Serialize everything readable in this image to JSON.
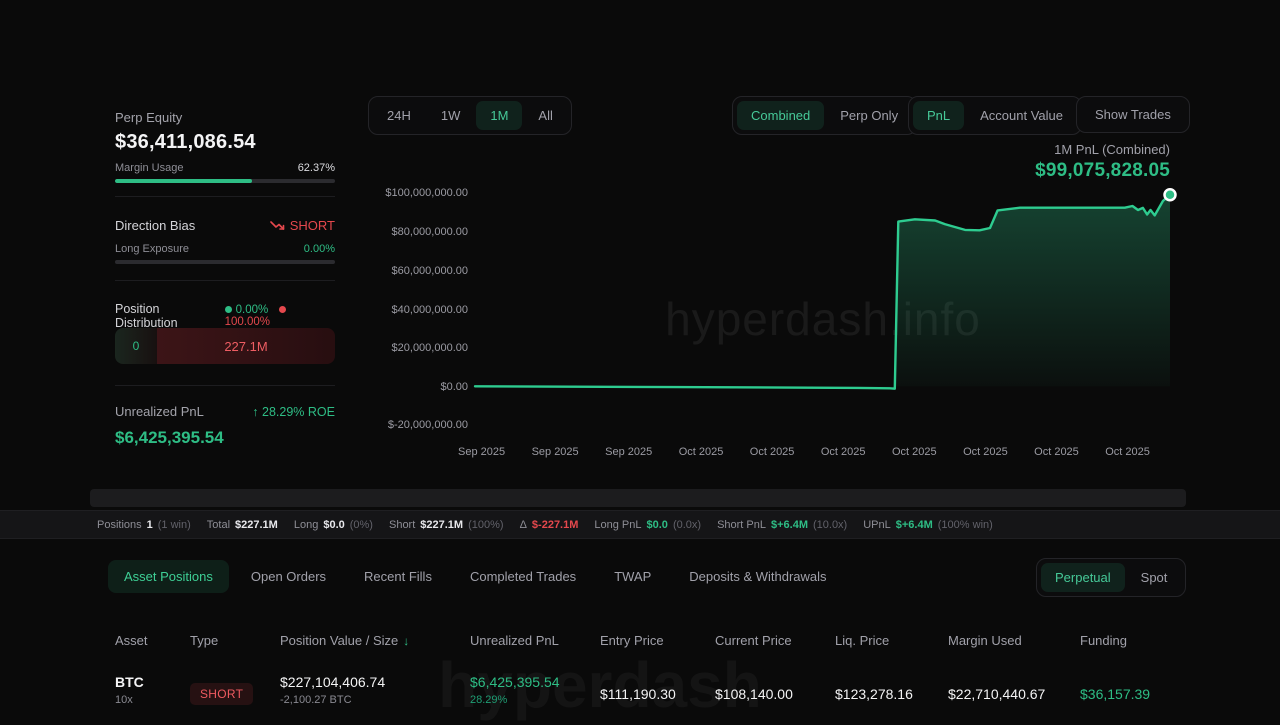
{
  "sidebar": {
    "perp_equity_label": "Perp Equity",
    "perp_equity_value": "$36,411,086.54",
    "margin_usage_label": "Margin Usage",
    "margin_usage_value": "62.37%",
    "margin_usage_pct": 62.37,
    "direction_bias_label": "Direction Bias",
    "direction_bias_value": "SHORT",
    "long_exposure_label": "Long Exposure",
    "long_exposure_value": "0.00%",
    "long_exposure_pct": 0,
    "position_distribution_label": "Position Distribution",
    "long_pct": "0.00%",
    "short_pct": "100.00%",
    "dist_long_value": "0",
    "dist_short_value": "227.1M",
    "unrealized_pnl_label": "Unrealized PnL",
    "roe_arrow": "↑",
    "roe_value": "28.29% ROE",
    "unrealized_pnl_value": "$6,425,395.54",
    "colors": {
      "green": "#2ebd85",
      "red": "#e5484d"
    }
  },
  "controls": {
    "time_ranges": [
      {
        "label": "24H",
        "active": false
      },
      {
        "label": "1W",
        "active": false
      },
      {
        "label": "1M",
        "active": true
      },
      {
        "label": "All",
        "active": false
      }
    ],
    "mode_toggle": [
      {
        "label": "Combined",
        "active": true
      },
      {
        "label": "Perp Only",
        "active": false
      }
    ],
    "metric_toggle": [
      {
        "label": "PnL",
        "active": true
      },
      {
        "label": "Account Value",
        "active": false
      }
    ],
    "show_trades_label": "Show Trades"
  },
  "chart": {
    "title": "1M PnL (Combined)",
    "current_value": "$99,075,828.05",
    "watermark": "hyperdash.info"
  },
  "chart_data": {
    "type": "area",
    "title": "1M PnL (Combined)",
    "series_name": "PnL",
    "ylim_millions": [
      -20,
      100
    ],
    "y_ticks": [
      "$100,000,000.00",
      "$80,000,000.00",
      "$60,000,000.00",
      "$40,000,000.00",
      "$20,000,000.00",
      "$0.00",
      "$-20,000,000.00"
    ],
    "x_ticks": [
      "Sep 2025",
      "Sep 2025",
      "Sep 2025",
      "Oct 2025",
      "Oct 2025",
      "Oct 2025",
      "Oct 2025",
      "Oct 2025",
      "Oct 2025",
      "Oct 2025"
    ],
    "grid": false,
    "legend": "none",
    "line_color": "#2ecc90",
    "end_value_millions": 99.08,
    "points_fracx_valueM": [
      [
        0.0,
        0
      ],
      [
        0.29,
        -0.4
      ],
      [
        0.55,
        -0.8
      ],
      [
        0.597,
        -1.0
      ],
      [
        0.604,
        -1.2
      ],
      [
        0.609,
        85.2
      ],
      [
        0.633,
        86.4
      ],
      [
        0.662,
        85.8
      ],
      [
        0.676,
        83.9
      ],
      [
        0.705,
        80.9
      ],
      [
        0.726,
        80.7
      ],
      [
        0.741,
        81.9
      ],
      [
        0.752,
        91.0
      ],
      [
        0.784,
        92.4
      ],
      [
        0.935,
        92.4
      ],
      [
        0.946,
        93.3
      ],
      [
        0.954,
        91.2
      ],
      [
        0.961,
        92.3
      ],
      [
        0.967,
        88.9
      ],
      [
        0.972,
        91.2
      ],
      [
        0.978,
        88.4
      ],
      [
        0.99,
        95.9
      ],
      [
        1.0,
        99.08
      ]
    ]
  },
  "stats": {
    "items": [
      {
        "label": "Positions",
        "value": "1",
        "paren": "(1 win)",
        "color": "white"
      },
      {
        "label": "Total",
        "value": "$227.1M",
        "paren": "",
        "color": "white"
      },
      {
        "label": "Long",
        "value": "$0.0",
        "paren": "(0%)",
        "color": "white"
      },
      {
        "label": "Short",
        "value": "$227.1M",
        "paren": "(100%)",
        "color": "white"
      },
      {
        "label": "Δ",
        "value": "$-227.1M",
        "paren": "",
        "color": "red"
      },
      {
        "label": "Long PnL",
        "value": "$0.0",
        "paren": "(0.0x)",
        "color": "green"
      },
      {
        "label": "Short PnL",
        "value": "$+6.4M",
        "paren": "(10.0x)",
        "color": "green"
      },
      {
        "label": "UPnL",
        "value": "$+6.4M",
        "paren": "(100% win)",
        "color": "green"
      }
    ]
  },
  "bottom": {
    "tabs": [
      {
        "label": "Asset Positions",
        "active": true
      },
      {
        "label": "Open Orders",
        "active": false
      },
      {
        "label": "Recent Fills",
        "active": false
      },
      {
        "label": "Completed Trades",
        "active": false
      },
      {
        "label": "TWAP",
        "active": false
      },
      {
        "label": "Deposits & Withdrawals",
        "active": false
      }
    ],
    "market_toggle": [
      {
        "label": "Perpetual",
        "active": true
      },
      {
        "label": "Spot",
        "active": false
      }
    ],
    "watermark": "hyperdash"
  },
  "table": {
    "headers": [
      {
        "label": "Asset",
        "sort": ""
      },
      {
        "label": "Type",
        "sort": ""
      },
      {
        "label": "Position Value / Size",
        "sort": "desc"
      },
      {
        "label": "Unrealized PnL",
        "sort": ""
      },
      {
        "label": "Entry Price",
        "sort": ""
      },
      {
        "label": "Current Price",
        "sort": ""
      },
      {
        "label": "Liq. Price",
        "sort": ""
      },
      {
        "label": "Margin Used",
        "sort": ""
      },
      {
        "label": "Funding",
        "sort": ""
      }
    ],
    "rows": [
      {
        "asset": "BTC",
        "leverage": "10x",
        "type": "SHORT",
        "position_value": "$227,104,406.74",
        "position_size": "-2,100.27 BTC",
        "unrealized_pnl": "$6,425,395.54",
        "unrealized_pnl_pct": "28.29%",
        "entry_price": "$111,190.30",
        "current_price": "$108,140.00",
        "liq_price": "$123,278.16",
        "margin_used": "$22,710,440.67",
        "funding": "$36,157.39"
      }
    ]
  }
}
